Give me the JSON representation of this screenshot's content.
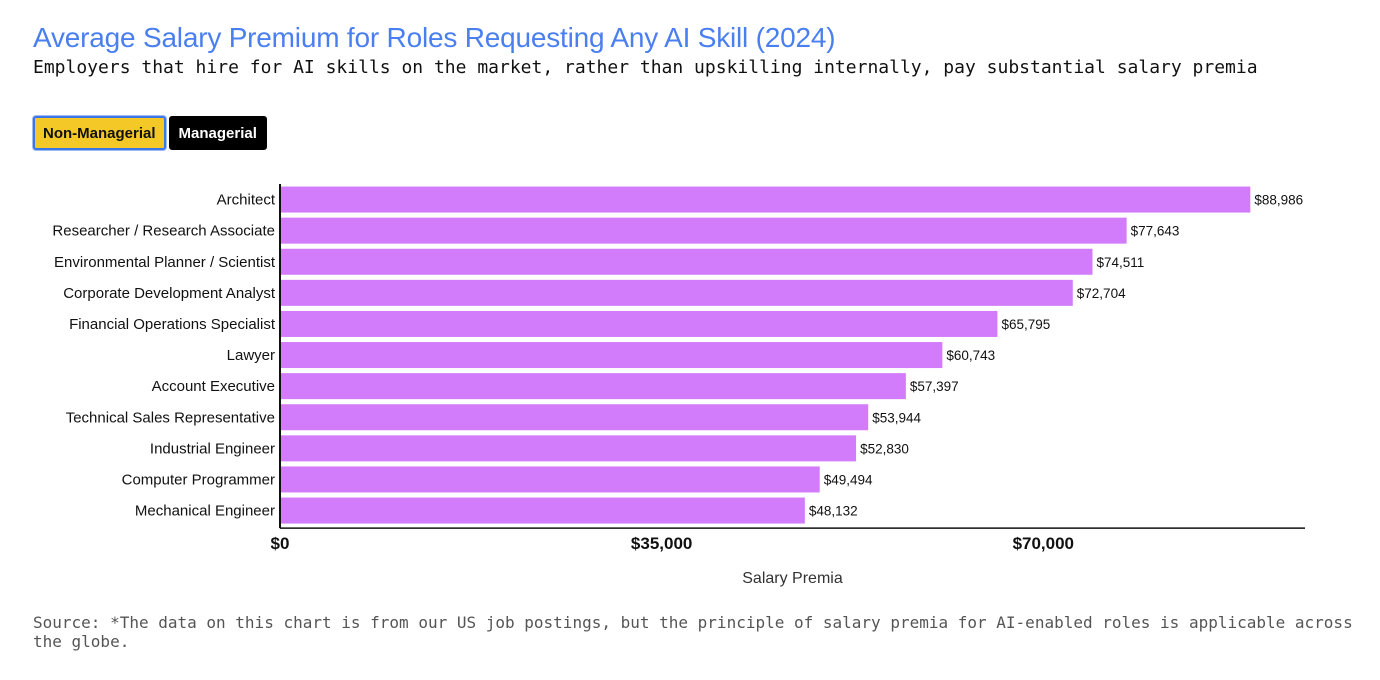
{
  "header": {
    "title": "Average Salary Premium for Roles Requesting Any AI Skill (2024)",
    "subtitle": "Employers that hire for AI skills on the market, rather than upskilling internally, pay substantial salary premia"
  },
  "tabs": [
    {
      "label": "Non-Managerial",
      "active": true
    },
    {
      "label": "Managerial",
      "active": false
    }
  ],
  "chart_data": {
    "type": "bar",
    "orientation": "horizontal",
    "categories": [
      "Architect",
      "Researcher / Research Associate",
      "Environmental Planner / Scientist",
      "Corporate Development Analyst",
      "Financial Operations Specialist",
      "Lawyer",
      "Account Executive",
      "Technical Sales Representative",
      "Industrial Engineer",
      "Computer Programmer",
      "Mechanical Engineer"
    ],
    "values": [
      88986,
      77643,
      74511,
      72704,
      65795,
      60743,
      57397,
      53944,
      52830,
      49494,
      48132
    ],
    "value_labels": [
      "$88,986",
      "$77,643",
      "$74,511",
      "$72,704",
      "$65,795",
      "$60,743",
      "$57,397",
      "$53,944",
      "$52,830",
      "$49,494",
      "$48,132"
    ],
    "xlim": [
      0,
      94000
    ],
    "x_ticks": [
      0,
      35000,
      70000
    ],
    "x_tick_labels": [
      "$0",
      "$35,000",
      "$70,000"
    ],
    "xlabel": "Salary Premia",
    "ylabel": "",
    "grid": false,
    "bar_color": "#d27bfb"
  },
  "footer": {
    "source": "Source: *The data on this chart is from our US job postings, but the principle of salary premia for AI-enabled roles is applicable across the globe."
  }
}
